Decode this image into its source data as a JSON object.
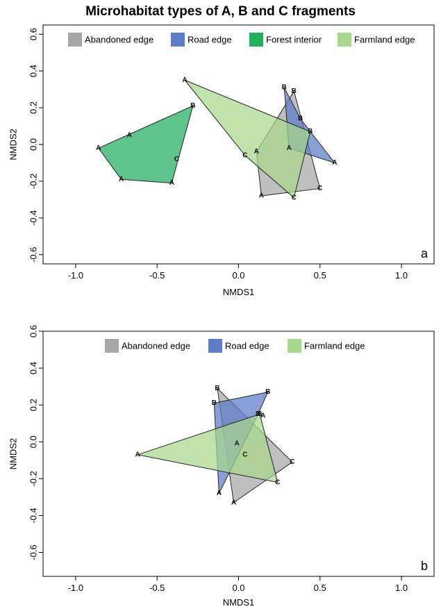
{
  "title": "Microhabitat types of A, B and C fragments",
  "colors": {
    "abandoned": "#A6A6A6",
    "road": "#5B7CC8",
    "forest": "#1EAF5F",
    "farmland": "#A8D88C"
  },
  "chart_data": [
    {
      "type": "scatter",
      "panel_label": "a",
      "xlabel": "NMDS1",
      "ylabel": "NMDS2",
      "xlim": [
        -1.2,
        1.2
      ],
      "ylim": [
        -0.65,
        0.65
      ],
      "xticks": [
        "-1.0",
        "-0.5",
        "0.0",
        "0.5",
        "1.0"
      ],
      "xtick_values": [
        -1.0,
        -0.5,
        0.0,
        0.5,
        1.0
      ],
      "yticks": [
        "-0.6",
        "-0.4",
        "-0.2",
        "0.0",
        "0.2",
        "0.4",
        "0.6"
      ],
      "ytick_values": [
        -0.6,
        -0.4,
        -0.2,
        0.0,
        0.2,
        0.4,
        0.6
      ],
      "grid": false,
      "legend_position": "top",
      "series": [
        {
          "name": "Abandoned edge",
          "color": "#A6A6A6",
          "hull": [
            [
              0.14,
              -0.28
            ],
            [
              0.5,
              -0.24
            ],
            [
              0.34,
              0.29
            ],
            [
              0.11,
              -0.04
            ]
          ],
          "points": [
            {
              "label": "A",
              "x": 0.14,
              "y": -0.28
            },
            {
              "label": "C",
              "x": 0.5,
              "y": -0.24
            },
            {
              "label": "B",
              "x": 0.34,
              "y": 0.29
            },
            {
              "label": "A",
              "x": 0.11,
              "y": -0.04
            }
          ]
        },
        {
          "name": "Road edge",
          "color": "#5B7CC8",
          "hull": [
            [
              0.28,
              0.31
            ],
            [
              0.38,
              0.14
            ],
            [
              0.59,
              -0.1
            ],
            [
              0.31,
              -0.02
            ]
          ],
          "points": [
            {
              "label": "B",
              "x": 0.28,
              "y": 0.31
            },
            {
              "label": "B",
              "x": 0.38,
              "y": 0.14
            },
            {
              "label": "A",
              "x": 0.59,
              "y": -0.1
            },
            {
              "label": "A",
              "x": 0.31,
              "y": -0.02
            }
          ]
        },
        {
          "name": "Forest interior",
          "color": "#1EAF5F",
          "hull": [
            [
              -0.86,
              -0.02
            ],
            [
              -0.28,
              0.21
            ],
            [
              -0.41,
              -0.21
            ],
            [
              -0.72,
              -0.19
            ]
          ],
          "points": [
            {
              "label": "A",
              "x": -0.86,
              "y": -0.02
            },
            {
              "label": "A",
              "x": -0.67,
              "y": 0.05
            },
            {
              "label": "B",
              "x": -0.28,
              "y": 0.21
            },
            {
              "label": "C",
              "x": -0.38,
              "y": -0.08
            },
            {
              "label": "A",
              "x": -0.41,
              "y": -0.21
            },
            {
              "label": "A",
              "x": -0.72,
              "y": -0.19
            }
          ]
        },
        {
          "name": "Farmland edge",
          "color": "#A8D88C",
          "hull": [
            [
              -0.33,
              0.35
            ],
            [
              0.44,
              0.07
            ],
            [
              0.34,
              -0.29
            ],
            [
              0.04,
              -0.06
            ]
          ],
          "points": [
            {
              "label": "A",
              "x": -0.33,
              "y": 0.35
            },
            {
              "label": "B",
              "x": 0.44,
              "y": 0.07
            },
            {
              "label": "C",
              "x": 0.34,
              "y": -0.29
            },
            {
              "label": "C",
              "x": 0.04,
              "y": -0.06
            }
          ]
        }
      ]
    },
    {
      "type": "scatter",
      "panel_label": "b",
      "xlabel": "NMDS1",
      "ylabel": "NMDS2",
      "xlim": [
        -1.2,
        1.2
      ],
      "ylim": [
        -0.73,
        0.6
      ],
      "xticks": [
        "-1.0",
        "-0.5",
        "0.0",
        "0.5",
        "1.0"
      ],
      "xtick_values": [
        -1.0,
        -0.5,
        0.0,
        0.5,
        1.0
      ],
      "yticks": [
        "-0.6",
        "-0.4",
        "-0.2",
        "0.0",
        "0.2",
        "0.4",
        "0.6"
      ],
      "ytick_values": [
        -0.6,
        -0.4,
        -0.2,
        0.0,
        0.2,
        0.4,
        0.6
      ],
      "grid": false,
      "legend_position": "top",
      "series": [
        {
          "name": "Abandoned edge",
          "color": "#A6A6A6",
          "hull": [
            [
              -0.13,
              0.29
            ],
            [
              0.33,
              -0.11
            ],
            [
              -0.03,
              -0.33
            ]
          ],
          "points": [
            {
              "label": "B",
              "x": -0.13,
              "y": 0.29
            },
            {
              "label": "A",
              "x": 0.15,
              "y": 0.14
            },
            {
              "label": "C",
              "x": 0.33,
              "y": -0.11
            },
            {
              "label": "A",
              "x": -0.03,
              "y": -0.33
            }
          ]
        },
        {
          "name": "Road edge",
          "color": "#5B7CC8",
          "hull": [
            [
              -0.15,
              0.21
            ],
            [
              0.18,
              0.27
            ],
            [
              0.12,
              0.15
            ],
            [
              -0.12,
              -0.28
            ]
          ],
          "points": [
            {
              "label": "B",
              "x": -0.15,
              "y": 0.21
            },
            {
              "label": "B",
              "x": 0.18,
              "y": 0.27
            },
            {
              "label": "B",
              "x": 0.12,
              "y": 0.15
            },
            {
              "label": "A",
              "x": -0.12,
              "y": -0.28
            }
          ]
        },
        {
          "name": "Farmland edge",
          "color": "#A8D88C",
          "hull": [
            [
              -0.62,
              -0.07
            ],
            [
              0.13,
              0.15
            ],
            [
              0.24,
              -0.22
            ]
          ],
          "points": [
            {
              "label": "A",
              "x": -0.62,
              "y": -0.07
            },
            {
              "label": "B",
              "x": 0.13,
              "y": 0.15
            },
            {
              "label": "A",
              "x": -0.01,
              "y": -0.01
            },
            {
              "label": "C",
              "x": 0.04,
              "y": -0.07
            },
            {
              "label": "C",
              "x": 0.24,
              "y": -0.22
            }
          ]
        }
      ]
    }
  ]
}
